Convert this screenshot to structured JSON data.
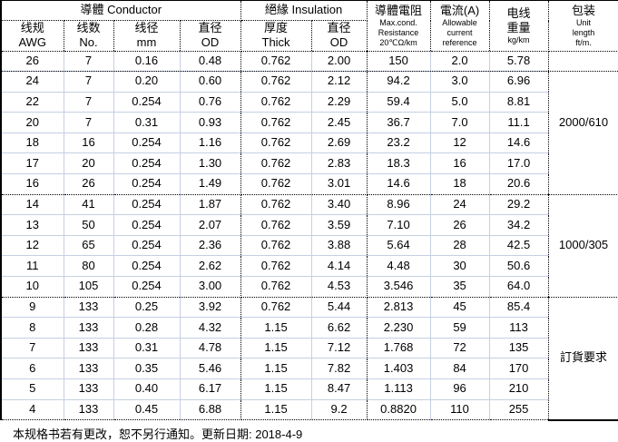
{
  "colors": {
    "grid_line": "#c6d0e2",
    "border": "#000000",
    "background": "#ffffff",
    "text": "#000000"
  },
  "table": {
    "header": {
      "conductor_group": "導體  Conductor",
      "insulation_group": "絕緣 Insulation",
      "awg": {
        "zh": "线规",
        "en": "AWG"
      },
      "strands": {
        "zh": "线数",
        "en": "No."
      },
      "wire_diameter": {
        "zh": "线径",
        "en": "mm"
      },
      "conductor_od": {
        "zh": "直径",
        "en": "OD"
      },
      "thickness": {
        "zh": "厚度",
        "en": "Thick"
      },
      "insulation_od": {
        "zh": "直径",
        "en": "OD"
      },
      "resistance": {
        "zh": "導體電阻",
        "line1": "Max.cond.",
        "line2": "Resistance",
        "line3": "20℃Ω/km"
      },
      "current": {
        "zh": "電流(A)",
        "line1": "Allowable",
        "line2": "current",
        "line3": "reference"
      },
      "weight": {
        "zh": "电线",
        "zh2": "重量",
        "unit": "kg/km"
      },
      "package": {
        "zh": "包装",
        "line1": "Unit",
        "line2": "length",
        "line3": "ft/m."
      }
    },
    "column_keys": [
      "awg",
      "strands",
      "wire-diameter",
      "conductor-od",
      "thickness",
      "insulation-od",
      "resistance",
      "current",
      "weight"
    ],
    "groups": [
      {
        "package_label": "2000/610",
        "rows": [
          [
            "26",
            "7",
            "0.16",
            "0.48",
            "0.762",
            "2.00",
            "150",
            "2.0",
            "5.78"
          ],
          [
            "24",
            "7",
            "0.20",
            "0.60",
            "0.762",
            "2.12",
            "94.2",
            "3.0",
            "6.96"
          ],
          [
            "22",
            "7",
            "0.254",
            "0.76",
            "0.762",
            "2.29",
            "59.4",
            "5.0",
            "8.81"
          ],
          [
            "20",
            "7",
            "0.31",
            "0.93",
            "0.762",
            "2.45",
            "36.7",
            "7.0",
            "11.1"
          ],
          [
            "18",
            "16",
            "0.254",
            "1.16",
            "0.762",
            "2.69",
            "23.2",
            "12",
            "14.6"
          ],
          [
            "17",
            "20",
            "0.254",
            "1.30",
            "0.762",
            "2.83",
            "18.3",
            "16",
            "17.0"
          ],
          [
            "16",
            "26",
            "0.254",
            "1.49",
            "0.762",
            "3.01",
            "14.6",
            "18",
            "20.6"
          ]
        ]
      },
      {
        "package_label": "1000/305",
        "rows": [
          [
            "14",
            "41",
            "0.254",
            "1.87",
            "0.762",
            "3.40",
            "8.96",
            "24",
            "29.2"
          ],
          [
            "13",
            "50",
            "0.254",
            "2.07",
            "0.762",
            "3.59",
            "7.10",
            "26",
            "34.2"
          ],
          [
            "12",
            "65",
            "0.254",
            "2.36",
            "0.762",
            "3.88",
            "5.64",
            "28",
            "42.5"
          ],
          [
            "11",
            "80",
            "0.254",
            "2.62",
            "0.762",
            "4.14",
            "4.48",
            "30",
            "50.6"
          ],
          [
            "10",
            "105",
            "0.254",
            "3.00",
            "0.762",
            "4.53",
            "3.546",
            "35",
            "64.0"
          ]
        ]
      },
      {
        "package_label": "訂貨要求",
        "rows": [
          [
            "9",
            "133",
            "0.25",
            "3.92",
            "0.762",
            "5.44",
            "2.813",
            "45",
            "85.4"
          ],
          [
            "8",
            "133",
            "0.28",
            "4.32",
            "1.15",
            "6.62",
            "2.230",
            "59",
            "113"
          ],
          [
            "7",
            "133",
            "0.31",
            "4.78",
            "1.15",
            "7.12",
            "1.768",
            "72",
            "135"
          ],
          [
            "6",
            "133",
            "0.35",
            "5.46",
            "1.15",
            "7.82",
            "1.403",
            "84",
            "170"
          ],
          [
            "5",
            "133",
            "0.40",
            "6.17",
            "1.15",
            "8.47",
            "1.113",
            "96",
            "210"
          ],
          [
            "4",
            "133",
            "0.45",
            "6.88",
            "1.15",
            "9.2",
            "0.8820",
            "110",
            "255"
          ]
        ]
      }
    ]
  },
  "footer": {
    "note": "本规格书若有更改，恕不另行通知。更新日期: 2018-4-9"
  }
}
